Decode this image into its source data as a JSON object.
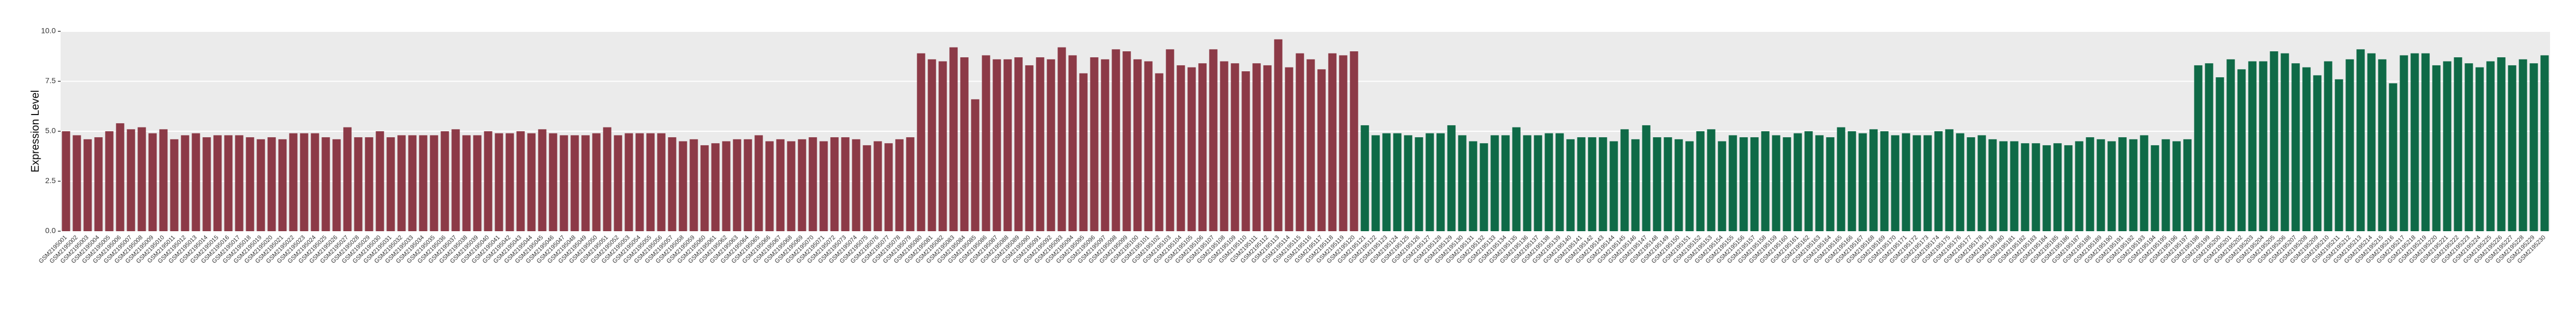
{
  "chart_data": {
    "type": "bar",
    "y_label": "Expression Level",
    "ylim": [
      0,
      10
    ],
    "yticks": [
      {
        "value": 0,
        "label": "0.0"
      },
      {
        "value": 2.5,
        "label": "2.5"
      },
      {
        "value": 5,
        "label": "5.0"
      },
      {
        "value": 7.5,
        "label": "7.5"
      },
      {
        "value": 10,
        "label": "10.0"
      }
    ],
    "grid": true,
    "categories": [
      "GSM2195001",
      "GSM2195002",
      "GSM2195003",
      "GSM2195004",
      "GSM2195005",
      "GSM2195006",
      "GSM2195007",
      "GSM2195008",
      "GSM2195009",
      "GSM2195010",
      "GSM2195011",
      "GSM2195012",
      "GSM2195013",
      "GSM2195014",
      "GSM2195015",
      "GSM2195016",
      "GSM2195017",
      "GSM2195018",
      "GSM2195019",
      "GSM2195020",
      "GSM2195021",
      "GSM2195022",
      "GSM2195023",
      "GSM2195024",
      "GSM2195025",
      "GSM2195026",
      "GSM2195027",
      "GSM2195028",
      "GSM2195029",
      "GSM2195030",
      "GSM2195031",
      "GSM2195032",
      "GSM2195033",
      "GSM2195034",
      "GSM2195035",
      "GSM2195036",
      "GSM2195037",
      "GSM2195038",
      "GSM2195039",
      "GSM2195040",
      "GSM2195041",
      "GSM2195042",
      "GSM2195043",
      "GSM2195044",
      "GSM2195045",
      "GSM2195046",
      "GSM2195047",
      "GSM2195048",
      "GSM2195049",
      "GSM2195050",
      "GSM2195051",
      "GSM2195052",
      "GSM2195053",
      "GSM2195054",
      "GSM2195055",
      "GSM2195056",
      "GSM2195057",
      "GSM2195058",
      "GSM2195059",
      "GSM2195060",
      "GSM2195061",
      "GSM2195062",
      "GSM2195063",
      "GSM2195064",
      "GSM2195065",
      "GSM2195066",
      "GSM2195067",
      "GSM2195068",
      "GSM2195069",
      "GSM2195070",
      "GSM2195071",
      "GSM2195072",
      "GSM2195073",
      "GSM2195074",
      "GSM2195075",
      "GSM2195076",
      "GSM2195077",
      "GSM2195078",
      "GSM2195079",
      "GSM2195080",
      "GSM2195081",
      "GSM2195082",
      "GSM2195083",
      "GSM2195084",
      "GSM2195085",
      "GSM2195086",
      "GSM2195087",
      "GSM2195088",
      "GSM2195089",
      "GSM2195090",
      "GSM2195091",
      "GSM2195092",
      "GSM2195093",
      "GSM2195094",
      "GSM2195095",
      "GSM2195096",
      "GSM2195097",
      "GSM2195098",
      "GSM2195099",
      "GSM2195100",
      "GSM2195101",
      "GSM2195102",
      "GSM2195103",
      "GSM2195104",
      "GSM2195105",
      "GSM2195106",
      "GSM2195107",
      "GSM2195108",
      "GSM2195109",
      "GSM2195110",
      "GSM2195111",
      "GSM2195112",
      "GSM2195113",
      "GSM2195114",
      "GSM2195115",
      "GSM2195116",
      "GSM2195117",
      "GSM2195118",
      "GSM2195119",
      "GSM2195120",
      "GSM2195121",
      "GSM2195122",
      "GSM2195123",
      "GSM2195124",
      "GSM2195125",
      "GSM2195126",
      "GSM2195127",
      "GSM2195128",
      "GSM2195129",
      "GSM2195130",
      "GSM2195131",
      "GSM2195132",
      "GSM2195133",
      "GSM2195134",
      "GSM2195135",
      "GSM2195136",
      "GSM2195137",
      "GSM2195138",
      "GSM2195139",
      "GSM2195140",
      "GSM2195141",
      "GSM2195142",
      "GSM2195143",
      "GSM2195144",
      "GSM2195145",
      "GSM2195146",
      "GSM2195147",
      "GSM2195148",
      "GSM2195149",
      "GSM2195150",
      "GSM2195151",
      "GSM2195152",
      "GSM2195153",
      "GSM2195154",
      "GSM2195155",
      "GSM2195156",
      "GSM2195157",
      "GSM2195158",
      "GSM2195159",
      "GSM2195160",
      "GSM2195161",
      "GSM2195162",
      "GSM2195163",
      "GSM2195164",
      "GSM2195165",
      "GSM2195166",
      "GSM2195167",
      "GSM2195168",
      "GSM2195169",
      "GSM2195170",
      "GSM2195171",
      "GSM2195172",
      "GSM2195173",
      "GSM2195174",
      "GSM2195175",
      "GSM2195176",
      "GSM2195177",
      "GSM2195178",
      "GSM2195179",
      "GSM2195180",
      "GSM2195181",
      "GSM2195182",
      "GSM2195183",
      "GSM2195184",
      "GSM2195185",
      "GSM2195186",
      "GSM2195187",
      "GSM2195188",
      "GSM2195189",
      "GSM2195190",
      "GSM2195191",
      "GSM2195192",
      "GSM2195193",
      "GSM2195194",
      "GSM2195195",
      "GSM2195196",
      "GSM2195197",
      "GSM2195198",
      "GSM2195199",
      "GSM2195200",
      "GSM2195201",
      "GSM2195202",
      "GSM2195203",
      "GSM2195204",
      "GSM2195205",
      "GSM2195206",
      "GSM2195207",
      "GSM2195208",
      "GSM2195209",
      "GSM2195210",
      "GSM2195211",
      "GSM2195212",
      "GSM2195213",
      "GSM2195214",
      "GSM2195215",
      "GSM2195216",
      "GSM2195217",
      "GSM2195218",
      "GSM2195219",
      "GSM2195220",
      "GSM2195221",
      "GSM2195222",
      "GSM2195223",
      "GSM2195224",
      "GSM2195225",
      "GSM2195226",
      "GSM2195227",
      "GSM2195228",
      "GSM2195229",
      "GSM2195230"
    ],
    "values": [
      5.0,
      4.8,
      4.6,
      4.7,
      5.0,
      5.4,
      5.1,
      5.2,
      4.9,
      5.1,
      4.6,
      4.8,
      4.9,
      4.7,
      4.8,
      4.8,
      4.8,
      4.7,
      4.6,
      4.7,
      4.6,
      4.9,
      4.9,
      4.9,
      4.7,
      4.6,
      5.2,
      4.7,
      4.7,
      5.0,
      4.7,
      4.8,
      4.8,
      4.8,
      4.8,
      5.0,
      5.1,
      4.8,
      4.8,
      5.0,
      4.9,
      4.9,
      5.0,
      4.9,
      5.1,
      4.9,
      4.8,
      4.8,
      4.8,
      4.9,
      5.2,
      4.8,
      4.9,
      4.9,
      4.9,
      4.9,
      4.7,
      4.5,
      4.6,
      4.3,
      4.4,
      4.5,
      4.6,
      4.6,
      4.8,
      4.5,
      4.6,
      4.5,
      4.6,
      4.7,
      4.5,
      4.7,
      4.7,
      4.6,
      4.3,
      4.5,
      4.4,
      4.6,
      4.7,
      8.9,
      8.6,
      8.5,
      9.2,
      8.7,
      6.6,
      8.8,
      8.6,
      8.6,
      8.7,
      8.3,
      8.7,
      8.6,
      9.2,
      8.8,
      7.9,
      8.7,
      8.6,
      9.1,
      9.0,
      8.6,
      8.5,
      7.9,
      9.1,
      8.3,
      8.2,
      8.4,
      9.1,
      8.5,
      8.4,
      8.0,
      8.4,
      8.3,
      9.6,
      8.2,
      8.9,
      8.6,
      8.1,
      8.9,
      8.8,
      9.0,
      5.3,
      4.8,
      4.9,
      4.9,
      4.8,
      4.7,
      4.9,
      4.9,
      5.3,
      4.8,
      4.5,
      4.4,
      4.8,
      4.8,
      5.2,
      4.8,
      4.8,
      4.9,
      4.9,
      4.6,
      4.7,
      4.7,
      4.7,
      4.5,
      5.1,
      4.6,
      5.3,
      4.7,
      4.7,
      4.6,
      4.5,
      5.0,
      5.1,
      4.5,
      4.8,
      4.7,
      4.7,
      5.0,
      4.8,
      4.7,
      4.9,
      5.0,
      4.8,
      4.7,
      5.2,
      5.0,
      4.9,
      5.1,
      5.0,
      4.8,
      4.9,
      4.8,
      4.8,
      5.0,
      5.1,
      4.9,
      4.7,
      4.8,
      4.6,
      4.5,
      4.5,
      4.4,
      4.4,
      4.3,
      4.4,
      4.3,
      4.5,
      4.7,
      4.6,
      4.5,
      4.7,
      4.6,
      4.8,
      4.3,
      4.6,
      4.5,
      4.6,
      8.3,
      8.4,
      7.7,
      8.6,
      8.1,
      8.5,
      8.5,
      9.0,
      8.9,
      8.4,
      8.2,
      7.8,
      8.5,
      7.6,
      8.6,
      9.1,
      8.9,
      8.6,
      7.4,
      8.8,
      8.9,
      8.9,
      8.3,
      8.5,
      8.7,
      8.4,
      8.2,
      8.5,
      8.7,
      8.3,
      8.6,
      8.4,
      8.8
    ],
    "colors": [
      "#8c3a47",
      "#8c3a47",
      "#8c3a47",
      "#8c3a47",
      "#8c3a47",
      "#8c3a47",
      "#8c3a47",
      "#8c3a47",
      "#8c3a47",
      "#8c3a47",
      "#8c3a47",
      "#8c3a47",
      "#8c3a47",
      "#8c3a47",
      "#8c3a47",
      "#8c3a47",
      "#8c3a47",
      "#8c3a47",
      "#8c3a47",
      "#8c3a47",
      "#8c3a47",
      "#8c3a47",
      "#8c3a47",
      "#8c3a47",
      "#8c3a47",
      "#8c3a47",
      "#8c3a47",
      "#8c3a47",
      "#8c3a47",
      "#8c3a47",
      "#8c3a47",
      "#8c3a47",
      "#8c3a47",
      "#8c3a47",
      "#8c3a47",
      "#8c3a47",
      "#8c3a47",
      "#8c3a47",
      "#8c3a47",
      "#8c3a47",
      "#8c3a47",
      "#8c3a47",
      "#8c3a47",
      "#8c3a47",
      "#8c3a47",
      "#8c3a47",
      "#8c3a47",
      "#8c3a47",
      "#8c3a47",
      "#8c3a47",
      "#8c3a47",
      "#8c3a47",
      "#8c3a47",
      "#8c3a47",
      "#8c3a47",
      "#8c3a47",
      "#8c3a47",
      "#8c3a47",
      "#8c3a47",
      "#8c3a47",
      "#8c3a47",
      "#8c3a47",
      "#8c3a47",
      "#8c3a47",
      "#8c3a47",
      "#8c3a47",
      "#8c3a47",
      "#8c3a47",
      "#8c3a47",
      "#8c3a47",
      "#8c3a47",
      "#8c3a47",
      "#8c3a47",
      "#8c3a47",
      "#8c3a47",
      "#8c3a47",
      "#8c3a47",
      "#8c3a47",
      "#8c3a47",
      "#8c3a47",
      "#8c3a47",
      "#8c3a47",
      "#8c3a47",
      "#8c3a47",
      "#8c3a47",
      "#8c3a47",
      "#8c3a47",
      "#8c3a47",
      "#8c3a47",
      "#8c3a47",
      "#8c3a47",
      "#8c3a47",
      "#8c3a47",
      "#8c3a47",
      "#8c3a47",
      "#8c3a47",
      "#8c3a47",
      "#8c3a47",
      "#8c3a47",
      "#8c3a47",
      "#8c3a47",
      "#8c3a47",
      "#8c3a47",
      "#8c3a47",
      "#8c3a47",
      "#8c3a47",
      "#8c3a47",
      "#8c3a47",
      "#8c3a47",
      "#8c3a47",
      "#8c3a47",
      "#8c3a47",
      "#8c3a47",
      "#8c3a47",
      "#8c3a47",
      "#8c3a47",
      "#8c3a47",
      "#8c3a47",
      "#8c3a47",
      "#8c3a47",
      "#0f6a47",
      "#0f6a47",
      "#0f6a47",
      "#0f6a47",
      "#0f6a47",
      "#0f6a47",
      "#0f6a47",
      "#0f6a47",
      "#0f6a47",
      "#0f6a47",
      "#0f6a47",
      "#0f6a47",
      "#0f6a47",
      "#0f6a47",
      "#0f6a47",
      "#0f6a47",
      "#0f6a47",
      "#0f6a47",
      "#0f6a47",
      "#0f6a47",
      "#0f6a47",
      "#0f6a47",
      "#0f6a47",
      "#0f6a47",
      "#0f6a47",
      "#0f6a47",
      "#0f6a47",
      "#0f6a47",
      "#0f6a47",
      "#0f6a47",
      "#0f6a47",
      "#0f6a47",
      "#0f6a47",
      "#0f6a47",
      "#0f6a47",
      "#0f6a47",
      "#0f6a47",
      "#0f6a47",
      "#0f6a47",
      "#0f6a47",
      "#0f6a47",
      "#0f6a47",
      "#0f6a47",
      "#0f6a47",
      "#0f6a47",
      "#0f6a47",
      "#0f6a47",
      "#0f6a47",
      "#0f6a47",
      "#0f6a47",
      "#0f6a47",
      "#0f6a47",
      "#0f6a47",
      "#0f6a47",
      "#0f6a47",
      "#0f6a47",
      "#0f6a47",
      "#0f6a47",
      "#0f6a47",
      "#0f6a47",
      "#0f6a47",
      "#0f6a47",
      "#0f6a47",
      "#0f6a47",
      "#0f6a47",
      "#0f6a47",
      "#0f6a47",
      "#0f6a47",
      "#0f6a47",
      "#0f6a47",
      "#0f6a47",
      "#0f6a47",
      "#0f6a47",
      "#0f6a47",
      "#0f6a47",
      "#0f6a47",
      "#0f6a47",
      "#0f6a47",
      "#0f6a47",
      "#0f6a47",
      "#0f6a47",
      "#0f6a47",
      "#0f6a47",
      "#0f6a47",
      "#0f6a47",
      "#0f6a47",
      "#0f6a47",
      "#0f6a47",
      "#0f6a47",
      "#0f6a47",
      "#0f6a47",
      "#0f6a47",
      "#0f6a47",
      "#0f6a47",
      "#0f6a47",
      "#0f6a47",
      "#0f6a47",
      "#0f6a47",
      "#0f6a47",
      "#0f6a47",
      "#0f6a47",
      "#0f6a47",
      "#0f6a47",
      "#0f6a47",
      "#0f6a47",
      "#0f6a47",
      "#0f6a47",
      "#0f6a47",
      "#0f6a47",
      "#0f6a47"
    ]
  }
}
